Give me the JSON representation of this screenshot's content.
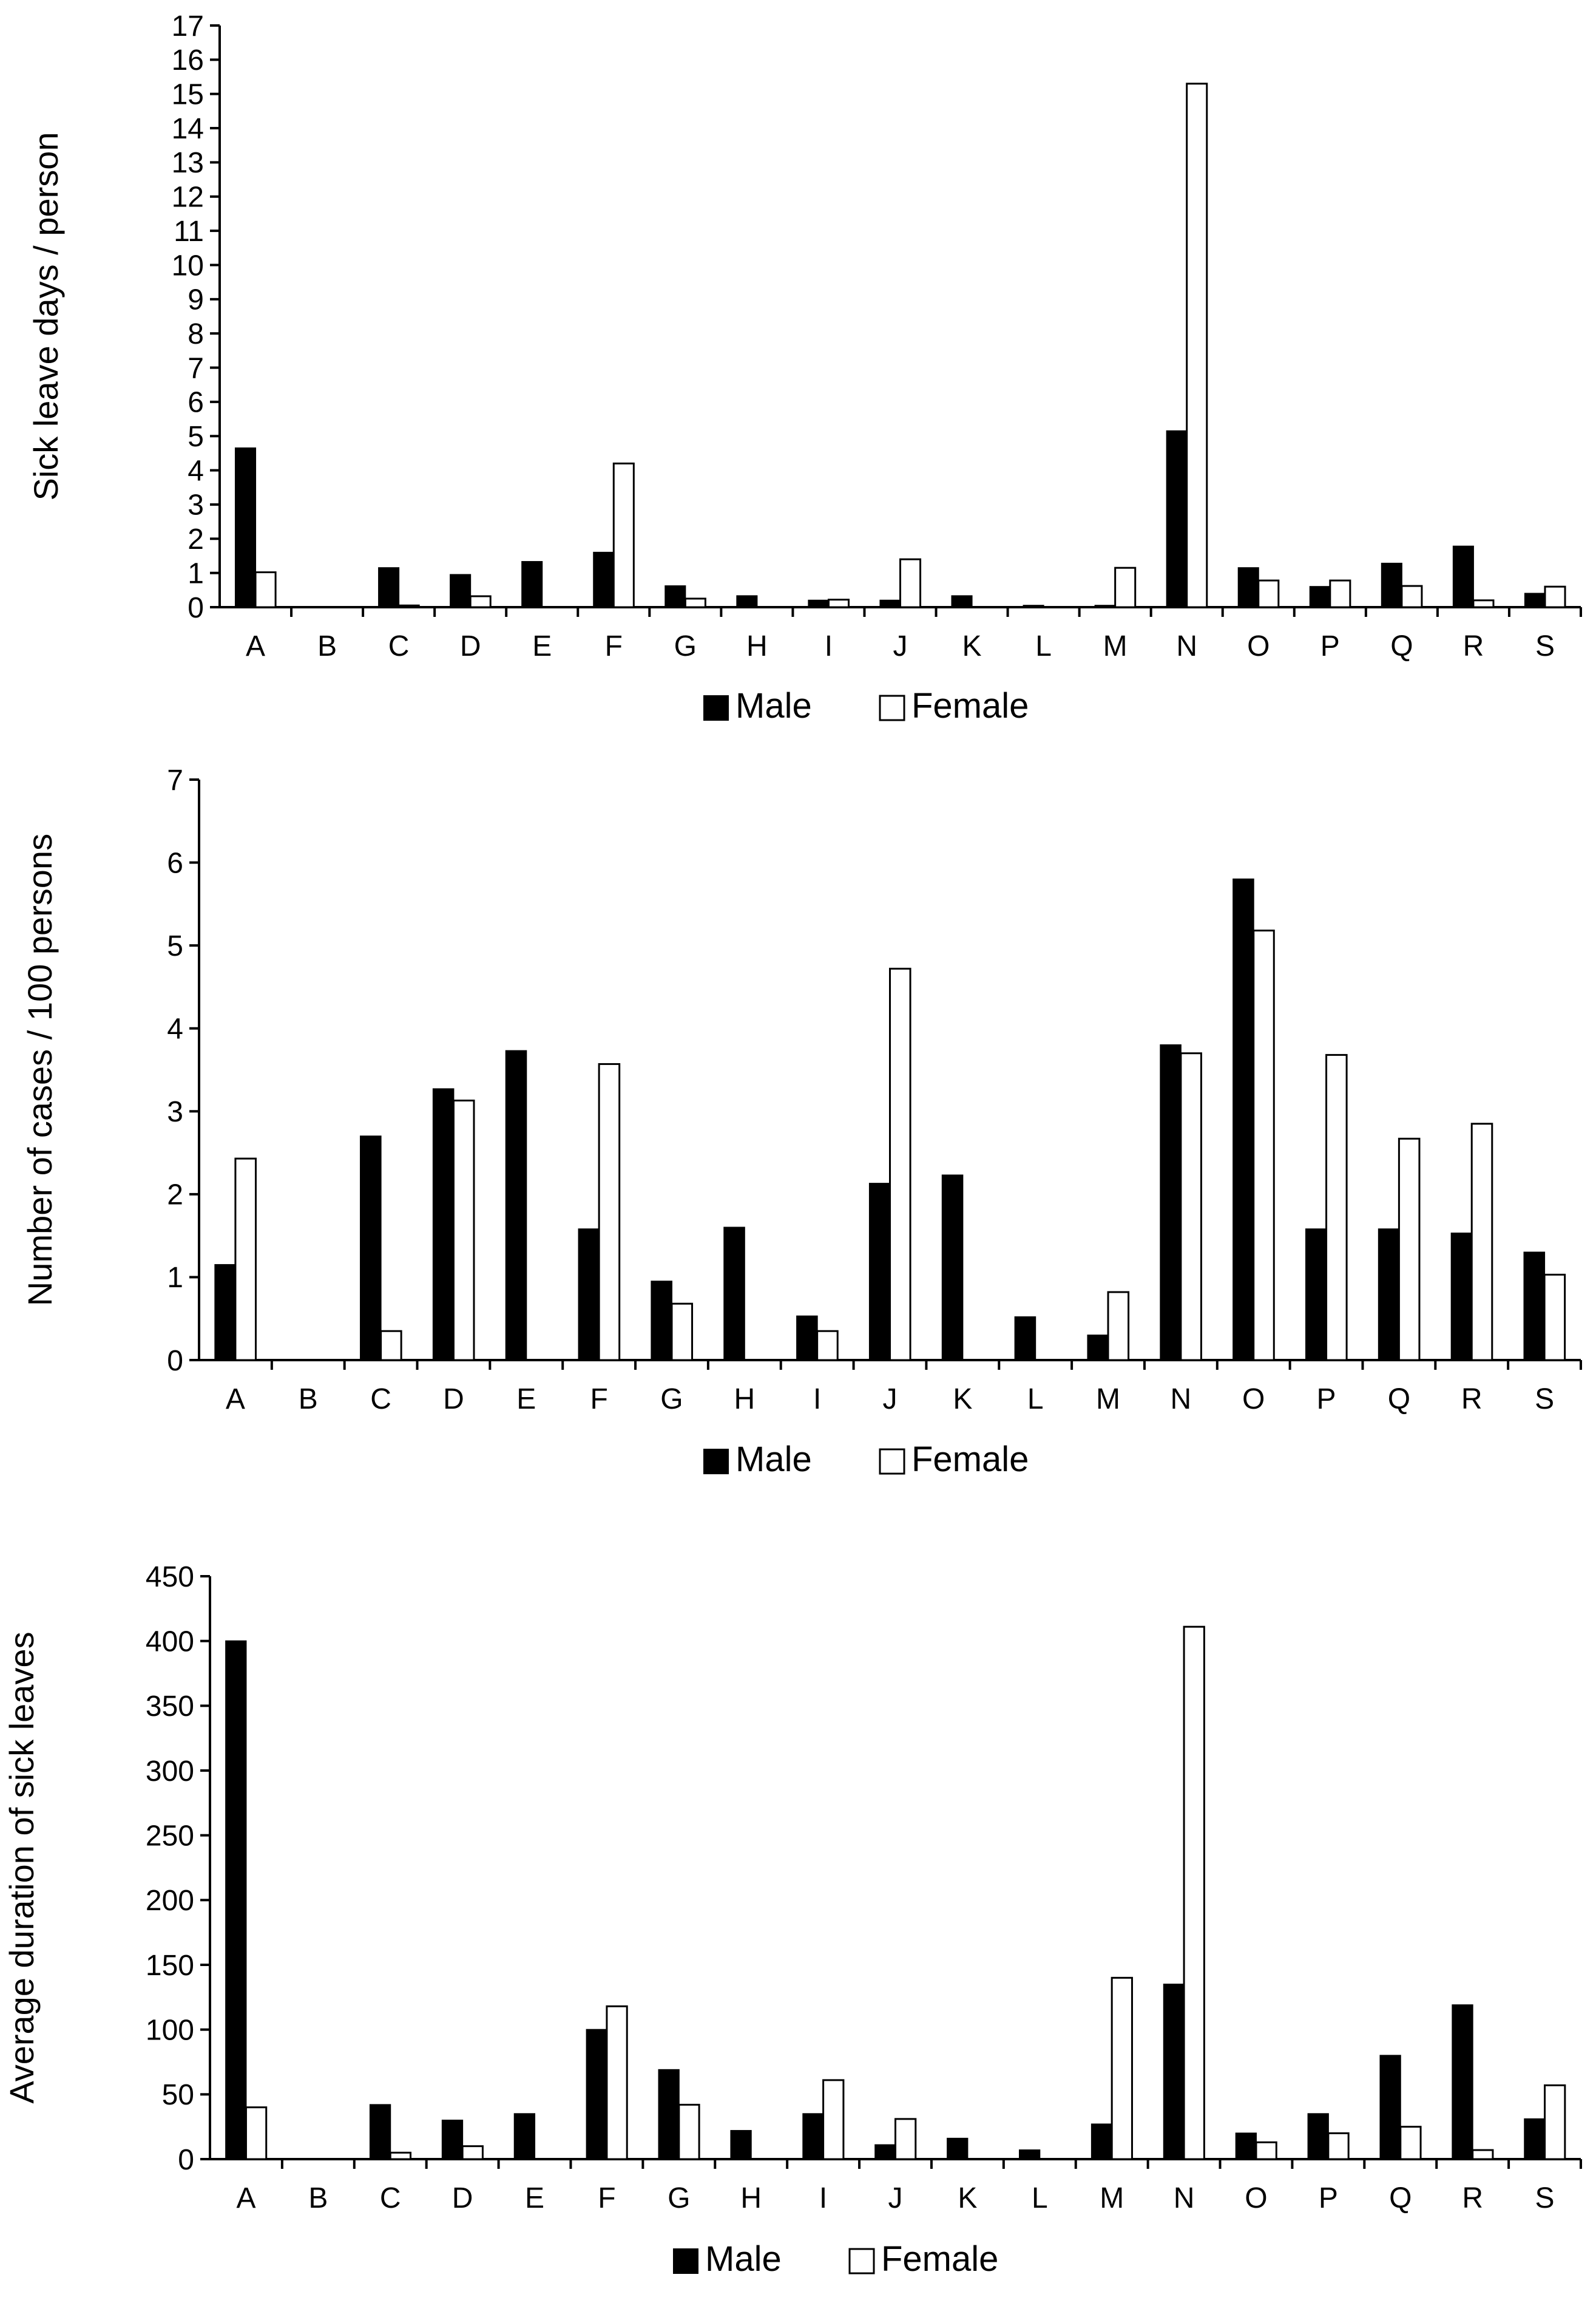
{
  "colors": {
    "male": "#000000",
    "female": "#ffffff",
    "axis": "#000000"
  },
  "chart_data": [
    {
      "type": "bar",
      "title": "",
      "xlabel": "",
      "ylabel": "Sick leave days / person",
      "ylim": [
        0,
        17
      ],
      "yticks": [
        0,
        1,
        2,
        3,
        4,
        5,
        6,
        7,
        8,
        9,
        10,
        11,
        12,
        13,
        14,
        15,
        16,
        17
      ],
      "categories": [
        "A",
        "B",
        "C",
        "D",
        "E",
        "F",
        "G",
        "H",
        "I",
        "J",
        "K",
        "L",
        "M",
        "N",
        "O",
        "P",
        "Q",
        "R",
        "S"
      ],
      "series": [
        {
          "name": "Male",
          "values": [
            4.65,
            0,
            1.15,
            0.95,
            1.33,
            1.6,
            0.62,
            0.33,
            0.2,
            0.2,
            0.33,
            0.05,
            0.05,
            5.15,
            1.15,
            0.6,
            1.28,
            1.78,
            0.4
          ]
        },
        {
          "name": "Female",
          "values": [
            1.02,
            0,
            0.05,
            0.32,
            0,
            4.2,
            0.25,
            0,
            0.22,
            1.4,
            0,
            0,
            1.15,
            15.3,
            0.78,
            0.78,
            0.62,
            0.2,
            0.6
          ]
        }
      ],
      "legend": [
        "Male",
        "Female"
      ]
    },
    {
      "type": "bar",
      "title": "",
      "xlabel": "",
      "ylabel": "Number of cases / 100 persons",
      "ylim": [
        0,
        7
      ],
      "yticks": [
        0,
        1,
        2,
        3,
        4,
        5,
        6,
        7
      ],
      "categories": [
        "A",
        "B",
        "C",
        "D",
        "E",
        "F",
        "G",
        "H",
        "I",
        "J",
        "K",
        "L",
        "M",
        "N",
        "O",
        "P",
        "Q",
        "R",
        "S"
      ],
      "series": [
        {
          "name": "Male",
          "values": [
            1.15,
            0,
            2.7,
            3.27,
            3.73,
            1.58,
            0.95,
            1.6,
            0.53,
            2.13,
            2.23,
            0.52,
            0.3,
            3.8,
            5.8,
            1.58,
            1.58,
            1.53,
            1.3
          ]
        },
        {
          "name": "Female",
          "values": [
            2.43,
            0,
            0.35,
            3.13,
            0,
            3.57,
            0.68,
            0,
            0.35,
            4.72,
            0,
            0,
            0.82,
            3.7,
            5.18,
            3.68,
            2.67,
            2.85,
            1.03
          ]
        }
      ],
      "legend": [
        "Male",
        "Female"
      ]
    },
    {
      "type": "bar",
      "title": "",
      "xlabel": "",
      "ylabel": "Average duration of sick leaves",
      "ylim": [
        0,
        450
      ],
      "yticks": [
        0,
        50,
        100,
        150,
        200,
        250,
        300,
        350,
        400,
        450
      ],
      "categories": [
        "A",
        "B",
        "C",
        "D",
        "E",
        "F",
        "G",
        "H",
        "I",
        "J",
        "K",
        "L",
        "M",
        "N",
        "O",
        "P",
        "Q",
        "R",
        "S"
      ],
      "series": [
        {
          "name": "Male",
          "values": [
            400,
            0,
            42,
            30,
            35,
            100,
            69,
            22,
            35,
            11,
            16,
            7,
            27,
            135,
            20,
            35,
            80,
            119,
            31
          ]
        },
        {
          "name": "Female",
          "values": [
            40,
            0,
            5,
            10,
            0,
            118,
            42,
            0,
            61,
            31,
            0,
            0,
            140,
            411,
            13,
            20,
            25,
            7,
            57
          ]
        }
      ],
      "legend": [
        "Male",
        "Female"
      ]
    }
  ]
}
